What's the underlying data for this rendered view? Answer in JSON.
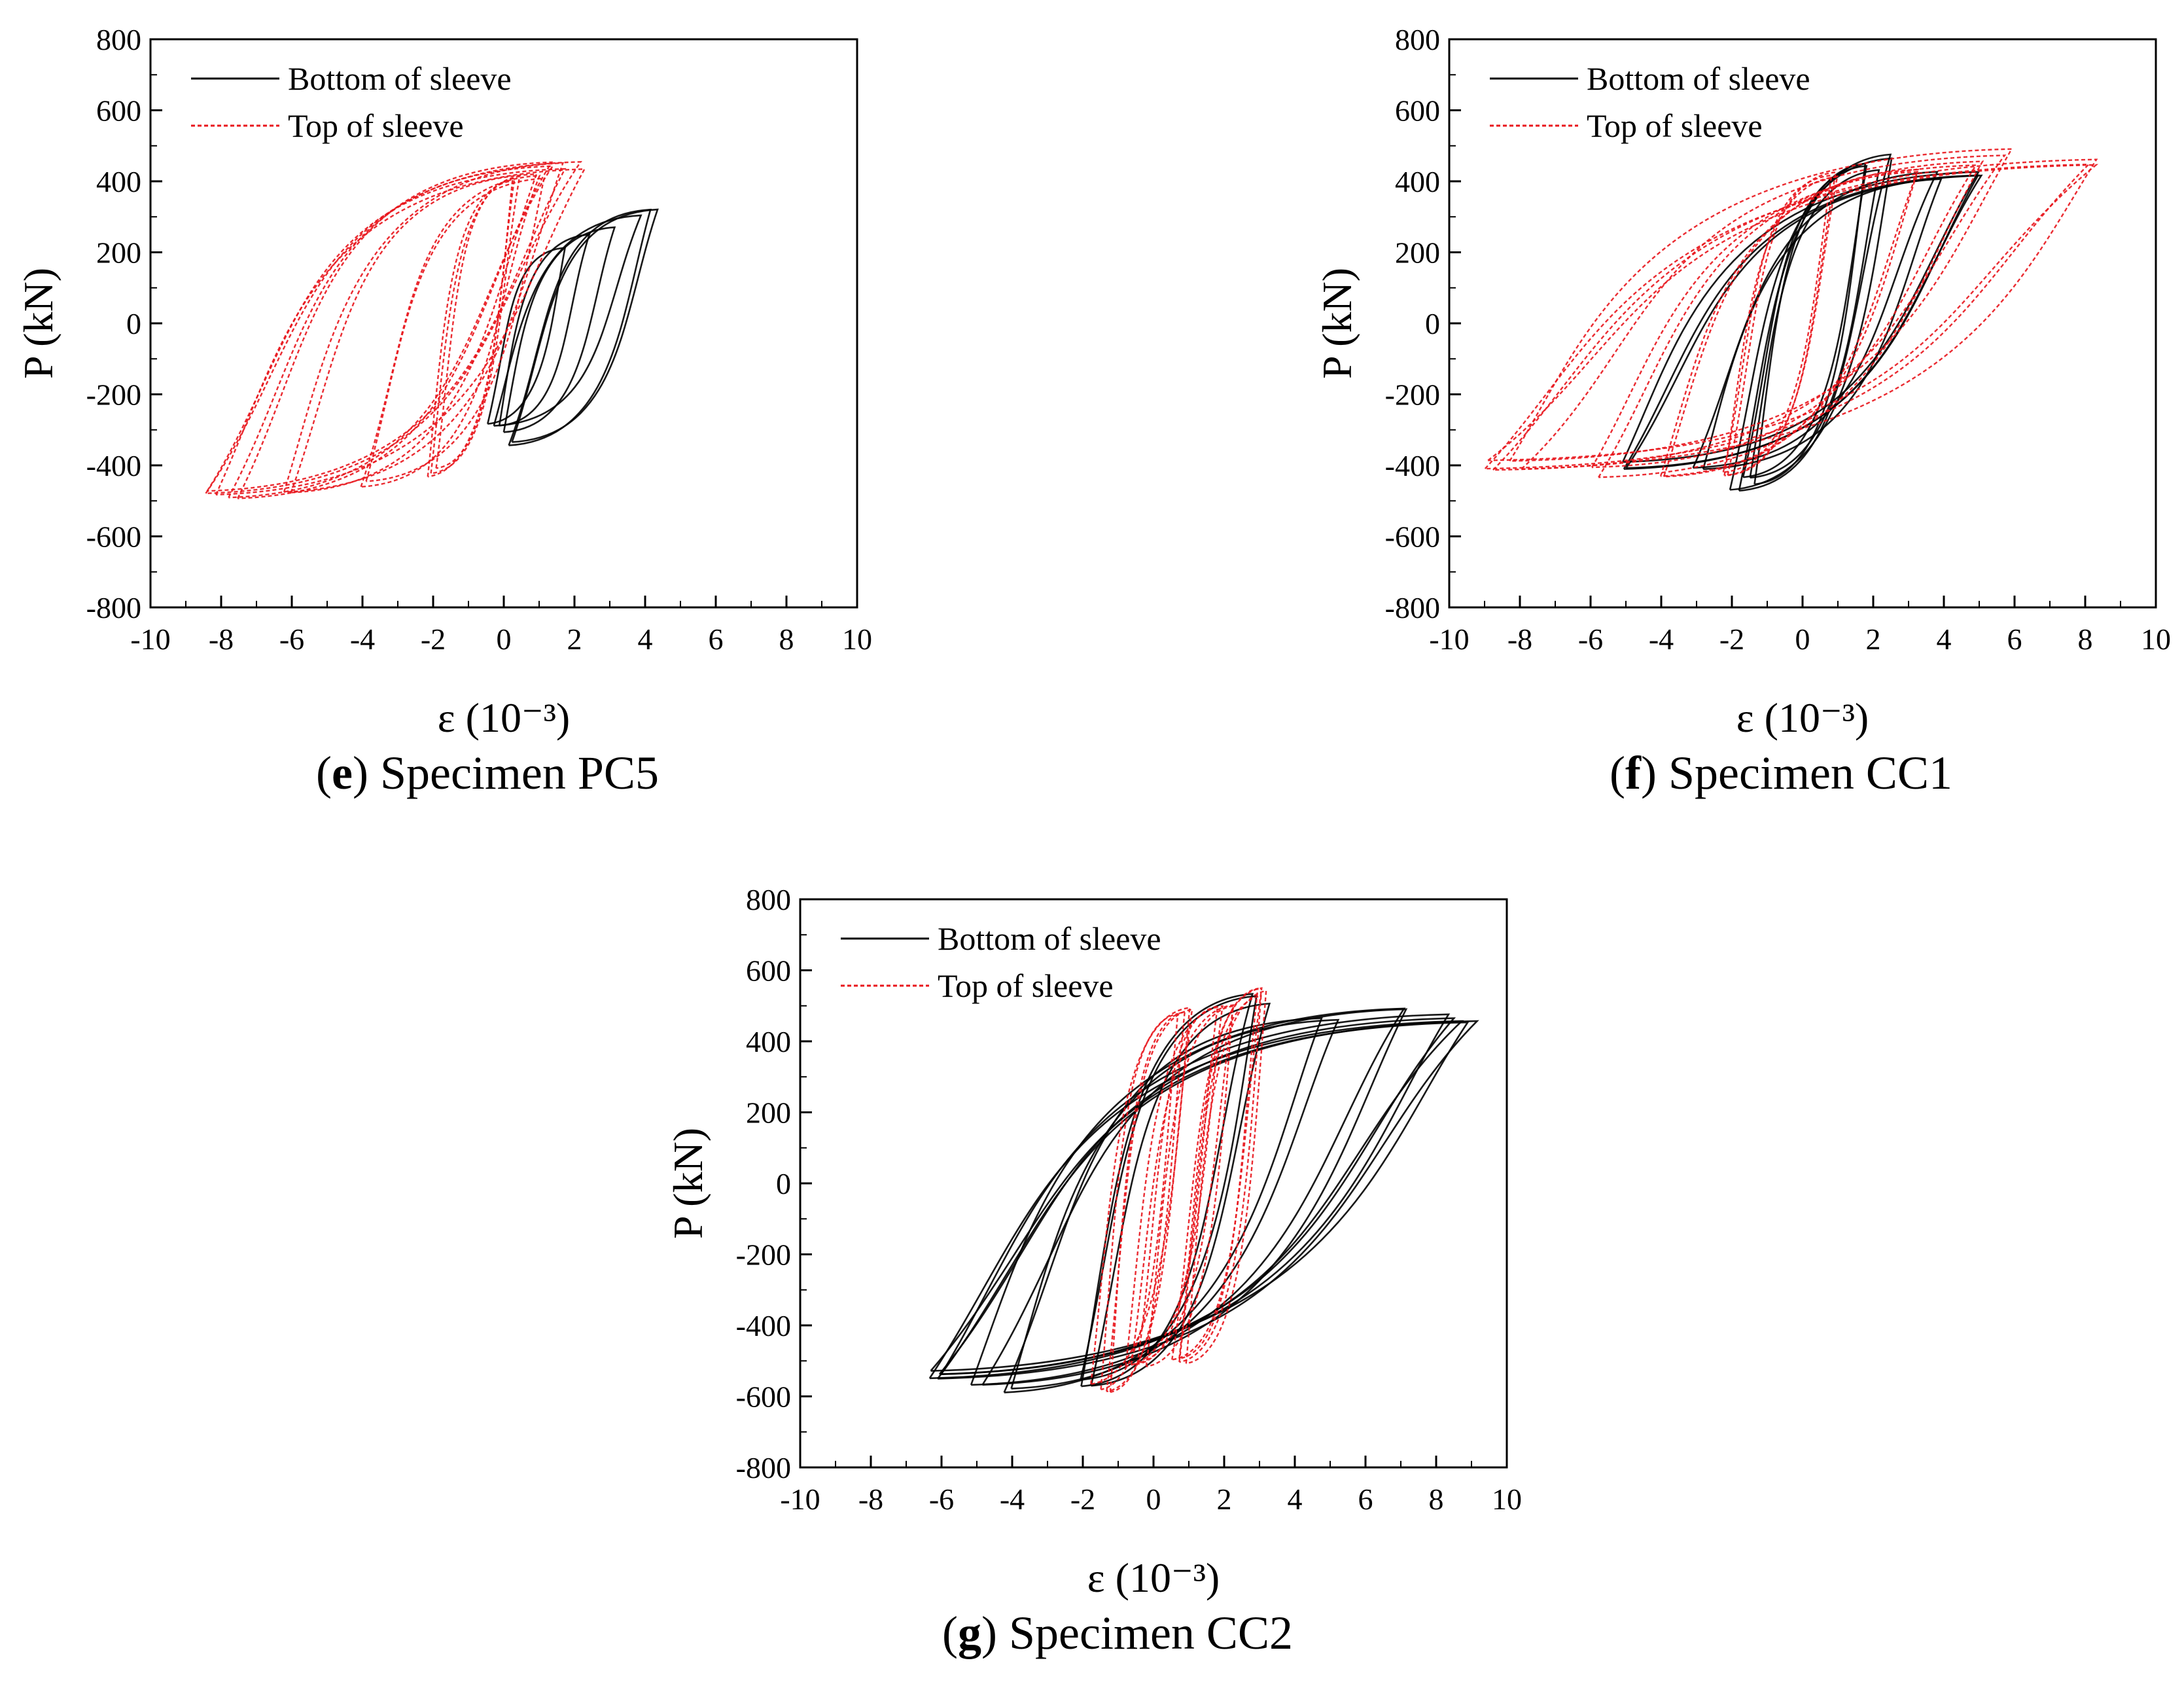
{
  "figure": {
    "panels": [
      {
        "id": "e",
        "caption_letter": "e",
        "caption_text": " Specimen PC5"
      },
      {
        "id": "f",
        "caption_letter": "f",
        "caption_text": " Specimen CC1"
      },
      {
        "id": "g",
        "caption_letter": "g",
        "caption_text": " Specimen CC2"
      }
    ]
  },
  "colors": {
    "bottom": "#000000",
    "top": "#e8141b",
    "axis": "#000000"
  },
  "chart_data": [
    {
      "type": "line",
      "title": "(e) Specimen PC5",
      "xlabel": "ε (10⁻³)",
      "ylabel": "P (kN)",
      "xlim": [
        -10,
        10
      ],
      "ylim": [
        -800,
        800
      ],
      "xticks": [
        -10,
        -8,
        -6,
        -4,
        -2,
        0,
        2,
        4,
        6,
        8,
        10
      ],
      "yticks": [
        -800,
        -600,
        -400,
        -200,
        0,
        200,
        400,
        600,
        800
      ],
      "legend": [
        "Bottom of sleeve",
        "Top of sleeve"
      ],
      "legend_position": "top-left",
      "series": [
        {
          "name": "Bottom of sleeve",
          "peaks_max": [
            [
              1.5,
              200
            ],
            [
              2.5,
              250
            ],
            [
              3.2,
              280
            ],
            [
              4.0,
              310
            ],
            [
              4.4,
              330
            ]
          ],
          "peaks_min": [
            [
              -0.2,
              -280
            ],
            [
              0.0,
              -300
            ],
            [
              0.2,
              -330
            ]
          ],
          "n_cycles": 6
        },
        {
          "name": "Top of sleeve",
          "peaks_max": [
            [
              0.5,
              400
            ],
            [
              1.0,
              420
            ],
            [
              1.5,
              440
            ],
            [
              2.0,
              440
            ]
          ],
          "peaks_min": [
            [
              -2.0,
              -420
            ],
            [
              -4.0,
              -450
            ],
            [
              -6.0,
              -470
            ],
            [
              -7.5,
              -480
            ],
            [
              -8.3,
              -480
            ]
          ],
          "n_cycles": 12
        }
      ]
    },
    {
      "type": "line",
      "title": "(f) Specimen CC1",
      "xlabel": "ε (10⁻³)",
      "ylabel": "P (kN)",
      "xlim": [
        -10,
        10
      ],
      "ylim": [
        -800,
        800
      ],
      "xticks": [
        -10,
        -8,
        -6,
        -4,
        -2,
        0,
        2,
        4,
        6,
        8,
        10
      ],
      "yticks": [
        -800,
        -600,
        -400,
        -200,
        0,
        200,
        400,
        600,
        800
      ],
      "legend": [
        "Bottom of sleeve",
        "Top of sleeve"
      ],
      "legend_position": "top-left",
      "series": [
        {
          "name": "Bottom of sleeve",
          "peaks_max": [
            [
              2.0,
              440
            ],
            [
              2.4,
              470
            ],
            [
              4.0,
              420
            ],
            [
              5.0,
              430
            ]
          ],
          "peaks_min": [
            [
              -1.5,
              -440
            ],
            [
              -1.8,
              -470
            ],
            [
              -3.0,
              -420
            ],
            [
              -5.0,
              -400
            ]
          ],
          "n_cycles": 10
        },
        {
          "name": "Top of sleeve",
          "peaks_max": [
            [
              1.0,
              420
            ],
            [
              3.0,
              430
            ],
            [
              5.0,
              460
            ],
            [
              6.0,
              480
            ],
            [
              8.2,
              460
            ]
          ],
          "peaks_min": [
            [
              -2.0,
              -430
            ],
            [
              -4.0,
              -440
            ],
            [
              -6.0,
              -420
            ],
            [
              -8.0,
              -400
            ],
            [
              -8.8,
              -400
            ]
          ],
          "n_cycles": 12
        }
      ]
    },
    {
      "type": "line",
      "title": "(g) Specimen CC2",
      "xlabel": "ε (10⁻³)",
      "ylabel": "P (kN)",
      "xlim": [
        -10,
        10
      ],
      "ylim": [
        -800,
        800
      ],
      "xticks": [
        -10,
        -8,
        -6,
        -4,
        -2,
        0,
        2,
        4,
        6,
        8,
        10
      ],
      "yticks": [
        -800,
        -600,
        -400,
        -200,
        0,
        200,
        400,
        600,
        800
      ],
      "legend": [
        "Bottom of sleeve",
        "Top of sleeve"
      ],
      "legend_position": "top-left",
      "series": [
        {
          "name": "Bottom of sleeve",
          "peaks_max": [
            [
              3.0,
              520
            ],
            [
              5.0,
              470
            ],
            [
              7.0,
              480
            ],
            [
              8.5,
              470
            ],
            [
              9.0,
              460
            ]
          ],
          "peaks_min": [
            [
              -2.0,
              -560
            ],
            [
              -4.0,
              -580
            ],
            [
              -5.0,
              -570
            ],
            [
              -6.0,
              -550
            ],
            [
              -6.2,
              -540
            ]
          ],
          "n_cycles": 12
        },
        {
          "name": "Top of sleeve",
          "peaks_max": [
            [
              0.8,
              480
            ],
            [
              2.0,
              510
            ],
            [
              3.0,
              540
            ]
          ],
          "peaks_min": [
            [
              -1.5,
              -580
            ],
            [
              -0.5,
              -520
            ],
            [
              0.8,
              -500
            ]
          ],
          "n_cycles": 12
        }
      ]
    }
  ]
}
